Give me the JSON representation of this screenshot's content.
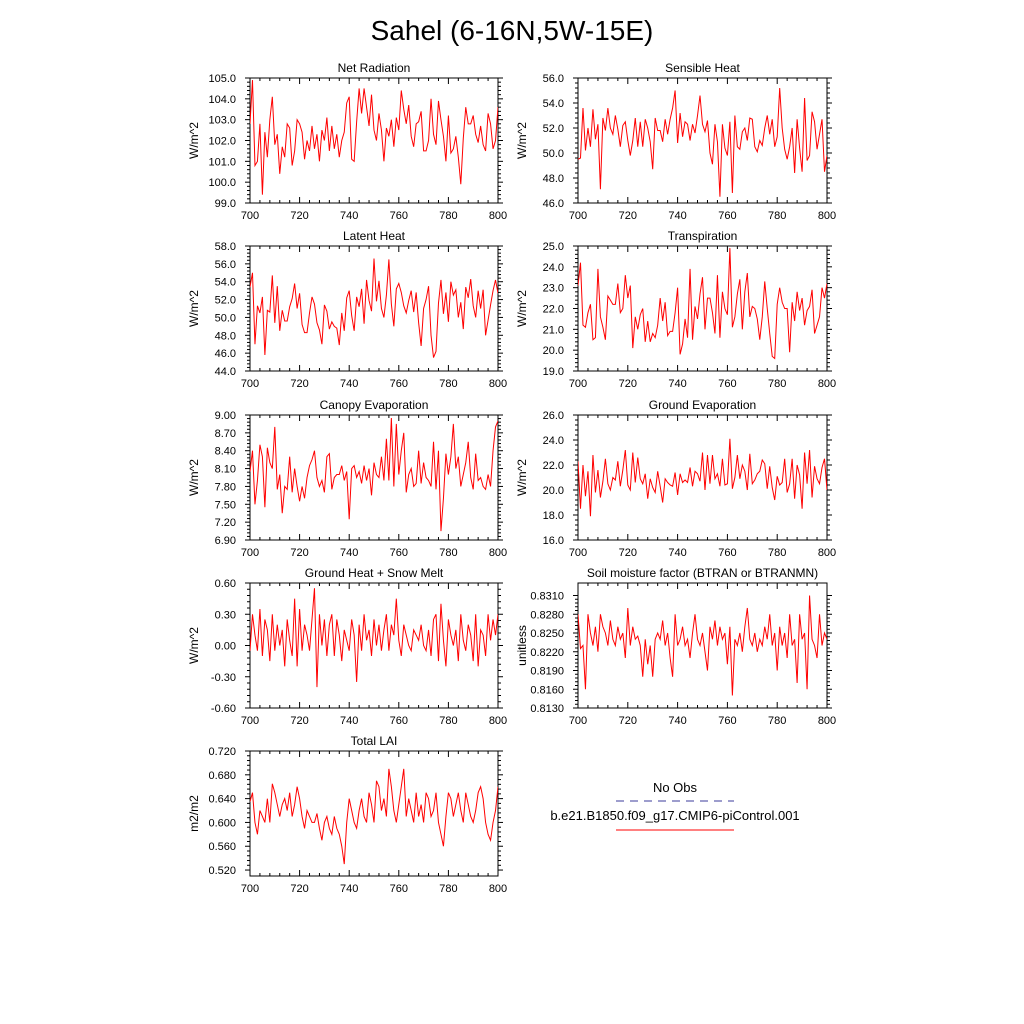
{
  "figure": {
    "title": "Sahel (6-16N,5W-15E)",
    "line_color": "#ff0000",
    "obs_color": "#3b3b9b"
  },
  "legend": {
    "obs_label": "No Obs",
    "case_label": "b.e21.B1850.f09_g17.CMIP6-piControl.001"
  },
  "chart_data": [
    {
      "type": "line",
      "title": "Net Radiation",
      "ylabel": "W/m^2",
      "xlim": [
        700,
        800
      ],
      "ylim": [
        99.0,
        105.0
      ],
      "xticks": [
        700,
        720,
        740,
        760,
        780,
        800
      ],
      "yticks": [
        99.0,
        100.0,
        101.0,
        102.0,
        103.0,
        104.0,
        105.0
      ],
      "ytick_labels": [
        "99.0",
        "100.0",
        "101.0",
        "102.0",
        "103.0",
        "104.0",
        "105.0"
      ],
      "x_start": 700,
      "values": [
        102.8,
        104.9,
        100.8,
        101.0,
        102.8,
        99.4,
        102.4,
        101.2,
        103.0,
        104.1,
        101.8,
        102.3,
        100.4,
        101.7,
        101.2,
        102.8,
        102.6,
        100.8,
        101.5,
        103.0,
        102.8,
        102.4,
        101.1,
        102.0,
        101.5,
        102.7,
        101.6,
        102.3,
        101.0,
        102.5,
        102.0,
        103.1,
        101.5,
        102.7,
        101.6,
        102.3,
        101.2,
        102.0,
        102.4,
        103.8,
        104.1,
        101.1,
        101.0,
        102.9,
        104.5,
        103.3,
        104.5,
        103.6,
        102.7,
        104.2,
        102.5,
        102.0,
        103.3,
        102.5,
        101.0,
        102.6,
        102.2,
        103.0,
        101.7,
        103.1,
        102.5,
        104.4,
        103.5,
        102.8,
        103.7,
        102.2,
        101.7,
        102.8,
        102.9,
        103.4,
        101.5,
        101.5,
        102.0,
        104.0,
        102.3,
        101.8,
        103.9,
        103.0,
        102.2,
        101.0,
        103.2,
        101.4,
        101.6,
        102.2,
        101.2,
        99.9,
        102.1,
        103.6,
        102.8,
        102.8,
        103.2,
        102.3,
        101.9,
        102.7,
        101.8,
        101.5,
        103.3,
        102.8,
        101.6,
        102.0,
        103.6
      ],
      "values_note": "approximate trace read from the plot"
    },
    {
      "type": "line",
      "title": "Sensible Heat",
      "ylabel": "W/m^2",
      "xlim": [
        700,
        800
      ],
      "ylim": [
        46.0,
        56.0
      ],
      "xticks": [
        700,
        720,
        740,
        760,
        780,
        800
      ],
      "yticks": [
        46.0,
        48.0,
        50.0,
        52.0,
        54.0,
        56.0
      ],
      "ytick_labels": [
        "46.0",
        "48.0",
        "50.0",
        "52.0",
        "54.0",
        "56.0"
      ],
      "x_start": 700,
      "values": [
        49.5,
        49.6,
        53.6,
        50.2,
        52.0,
        50.5,
        53.5,
        51.1,
        52.3,
        47.1,
        52.8,
        51.8,
        53.6,
        52.0,
        51.5,
        53.0,
        51.9,
        50.5,
        52.2,
        52.5,
        51.0,
        49.8,
        51.0,
        52.8,
        50.5,
        52.5,
        50.5,
        52.7,
        52.0,
        50.9,
        48.7,
        52.8,
        51.8,
        51.8,
        50.9,
        52.7,
        51.5,
        52.7,
        53.6,
        55.0,
        50.8,
        53.2,
        51.3,
        52.5,
        52.3,
        51.0,
        52.3,
        51.6,
        53.0,
        54.6,
        52.3,
        51.7,
        52.6,
        50.0,
        49.1,
        52.3,
        50.9,
        46.5,
        52.3,
        50.4,
        49.8,
        52.5,
        46.8,
        53.0,
        50.5,
        50.3,
        51.7,
        52.0,
        51.0,
        52.8,
        52.7,
        50.5,
        50.1,
        51.0,
        50.6,
        52.0,
        53.0,
        51.5,
        52.7,
        50.5,
        51.3,
        55.2,
        52.0,
        50.3,
        49.5,
        50.5,
        52.0,
        48.4,
        52.7,
        50.4,
        48.5,
        54.4,
        49.4,
        49.8,
        53.3,
        52.5,
        50.3,
        51.5,
        52.7,
        48.5,
        49.8
      ],
      "values_note": "approximate trace read from the plot"
    },
    {
      "type": "line",
      "title": "Latent Heat",
      "ylabel": "W/m^2",
      "xlim": [
        700,
        800
      ],
      "ylim": [
        44.0,
        58.0
      ],
      "xticks": [
        700,
        720,
        740,
        760,
        780,
        800
      ],
      "yticks": [
        44.0,
        46.0,
        48.0,
        50.0,
        52.0,
        54.0,
        56.0,
        58.0
      ],
      "ytick_labels": [
        "44.0",
        "46.0",
        "48.0",
        "50.0",
        "52.0",
        "54.0",
        "56.0",
        "58.0"
      ],
      "x_start": 700,
      "values": [
        53.4,
        55.0,
        47.0,
        51.3,
        50.5,
        52.3,
        45.8,
        50.8,
        50.6,
        54.7,
        49.4,
        53.5,
        48.5,
        50.8,
        49.6,
        49.6,
        51.2,
        52.1,
        53.8,
        51.0,
        52.7,
        49.2,
        48.3,
        48.3,
        50.5,
        52.3,
        51.5,
        49.4,
        48.6,
        47.0,
        51.4,
        50.7,
        48.7,
        49.5,
        49.0,
        48.8,
        46.9,
        50.5,
        48.5,
        52.2,
        53.0,
        50.2,
        48.5,
        52.3,
        51.2,
        53.2,
        49.3,
        54.2,
        51.9,
        50.7,
        56.6,
        51.8,
        54.1,
        51.0,
        50.0,
        52.5,
        56.5,
        51.5,
        49.0,
        53.2,
        53.8,
        52.8,
        51.3,
        50.5,
        51.9,
        53.0,
        50.6,
        52.8,
        49.4,
        46.8,
        51.0,
        52.0,
        53.5,
        48.0,
        45.5,
        46.2,
        51.6,
        54.2,
        50.4,
        52.8,
        49.5,
        54.0,
        52.5,
        53.1,
        50.0,
        51.7,
        48.7,
        53.4,
        52.2,
        54.3,
        51.3,
        50.0,
        53.0,
        51.0,
        53.1,
        48.0,
        49.7,
        51.4,
        53.0,
        54.2,
        52.7
      ],
      "values_note": "approximate trace read from the plot"
    },
    {
      "type": "line",
      "title": "Transpiration",
      "ylabel": "W/m^2",
      "xlim": [
        700,
        800
      ],
      "ylim": [
        19.0,
        25.0
      ],
      "xticks": [
        700,
        720,
        740,
        760,
        780,
        800
      ],
      "yticks": [
        19.0,
        20.0,
        21.0,
        22.0,
        23.0,
        24.0,
        25.0
      ],
      "ytick_labels": [
        "19.0",
        "20.0",
        "21.0",
        "22.0",
        "23.0",
        "24.0",
        "25.0"
      ],
      "x_start": 700,
      "values": [
        23.1,
        24.2,
        21.2,
        21.1,
        21.8,
        22.2,
        20.5,
        20.6,
        23.9,
        21.6,
        21.1,
        20.5,
        22.6,
        22.4,
        22.2,
        22.2,
        23.2,
        21.8,
        22.0,
        23.6,
        22.5,
        23.1,
        20.1,
        21.6,
        21.0,
        21.7,
        22.0,
        20.4,
        21.4,
        20.4,
        20.8,
        20.6,
        21.2,
        22.5,
        21.4,
        22.3,
        20.7,
        20.9,
        20.9,
        21.8,
        23.0,
        19.8,
        20.3,
        21.5,
        20.6,
        23.9,
        20.5,
        22.1,
        21.5,
        22.7,
        23.5,
        21.0,
        22.5,
        22.5,
        21.8,
        20.8,
        23.6,
        20.6,
        22.8,
        22.0,
        21.7,
        24.9,
        21.1,
        21.6,
        22.7,
        23.4,
        21.0,
        22.8,
        23.7,
        21.6,
        22.1,
        22.0,
        21.5,
        20.5,
        21.6,
        23.3,
        22.0,
        20.8,
        19.7,
        19.6,
        22.2,
        23.0,
        22.3,
        22.0,
        22.0,
        19.9,
        22.3,
        21.4,
        22.8,
        21.9,
        22.5,
        21.2,
        21.9,
        22.1,
        22.9,
        20.8,
        21.2,
        21.6,
        23.0,
        22.5,
        23.2
      ],
      "values_note": "approximate trace read from the plot"
    },
    {
      "type": "line",
      "title": "Canopy Evaporation",
      "ylabel": "W/m^2",
      "xlim": [
        700,
        800
      ],
      "ylim": [
        6.9,
        9.0
      ],
      "xticks": [
        700,
        720,
        740,
        760,
        780,
        800
      ],
      "yticks": [
        6.9,
        7.2,
        7.5,
        7.8,
        8.1,
        8.4,
        8.7,
        9.0
      ],
      "ytick_labels": [
        "6.90",
        "7.20",
        "7.50",
        "7.80",
        "8.10",
        "8.40",
        "8.70",
        "9.00"
      ],
      "x_start": 700,
      "values": [
        8.05,
        8.4,
        7.5,
        7.9,
        8.5,
        8.3,
        7.45,
        8.45,
        8.2,
        8.1,
        8.8,
        7.75,
        8.0,
        7.35,
        7.8,
        7.75,
        8.3,
        7.7,
        8.1,
        7.8,
        7.55,
        7.8,
        7.6,
        7.95,
        8.15,
        8.25,
        8.4,
        7.95,
        7.8,
        7.9,
        7.7,
        8.3,
        8.35,
        7.75,
        7.95,
        8.0,
        8.0,
        8.15,
        7.9,
        8.05,
        7.25,
        8.1,
        8.15,
        7.95,
        8.05,
        7.85,
        8.15,
        7.9,
        8.1,
        7.65,
        8.2,
        8.0,
        7.95,
        8.3,
        7.9,
        8.6,
        7.9,
        8.95,
        7.8,
        8.85,
        8.0,
        8.4,
        8.7,
        7.7,
        8.0,
        8.1,
        7.8,
        7.85,
        8.4,
        7.85,
        8.2,
        7.95,
        7.9,
        7.8,
        8.55,
        7.75,
        8.4,
        7.05,
        7.6,
        8.35,
        8.0,
        8.3,
        8.85,
        8.1,
        8.3,
        7.8,
        8.0,
        8.2,
        8.55,
        7.95,
        7.75,
        8.35,
        7.9,
        7.95,
        7.8,
        7.75,
        8.0,
        7.8,
        8.4,
        8.8,
        8.9
      ],
      "values_note": "approximate trace read from the plot"
    },
    {
      "type": "line",
      "title": "Ground Evaporation",
      "ylabel": "W/m^2",
      "xlim": [
        700,
        800
      ],
      "ylim": [
        16.0,
        26.0
      ],
      "xticks": [
        700,
        720,
        740,
        760,
        780,
        800
      ],
      "yticks": [
        16.0,
        18.0,
        20.0,
        22.0,
        24.0,
        26.0
      ],
      "ytick_labels": [
        "16.0",
        "18.0",
        "20.0",
        "22.0",
        "24.0",
        "26.0"
      ],
      "x_start": 700,
      "values": [
        22.3,
        18.5,
        22.0,
        19.5,
        21.5,
        17.9,
        22.8,
        19.8,
        21.6,
        19.4,
        20.7,
        22.5,
        20.5,
        20.0,
        21.0,
        20.8,
        22.3,
        20.3,
        21.6,
        23.2,
        20.4,
        20.0,
        23.0,
        20.6,
        22.6,
        20.9,
        20.5,
        21.3,
        19.3,
        20.9,
        20.2,
        19.8,
        21.5,
        20.3,
        19.0,
        20.9,
        20.6,
        20.4,
        20.3,
        21.4,
        19.6,
        21.3,
        20.6,
        20.8,
        20.6,
        21.8,
        20.3,
        21.5,
        21.3,
        20.7,
        23.0,
        20.0,
        22.8,
        20.5,
        22.8,
        20.9,
        21.3,
        20.3,
        22.5,
        20.4,
        20.5,
        24.1,
        20.1,
        21.0,
        22.8,
        20.9,
        22.0,
        21.5,
        20.0,
        22.9,
        20.5,
        20.8,
        21.3,
        21.5,
        22.4,
        22.1,
        20.1,
        21.9,
        20.2,
        19.2,
        21.1,
        20.4,
        20.6,
        22.5,
        19.8,
        20.5,
        22.5,
        19.3,
        22.0,
        21.2,
        18.5,
        23.0,
        20.5,
        23.2,
        19.4,
        21.9,
        20.9,
        20.5,
        21.8,
        22.5,
        20.0
      ],
      "values_note": "approximate trace read from the plot"
    },
    {
      "type": "line",
      "title": "Ground Heat + Snow Melt",
      "ylabel": "W/m^2",
      "xlim": [
        700,
        800
      ],
      "ylim": [
        -0.6,
        0.6
      ],
      "xticks": [
        700,
        720,
        740,
        760,
        780,
        800
      ],
      "yticks": [
        -0.6,
        -0.3,
        0.0,
        0.3,
        0.6
      ],
      "ytick_labels": [
        "-0.60",
        "-0.30",
        "0.00",
        "0.30",
        "0.60"
      ],
      "x_start": 700,
      "values": [
        -0.05,
        0.3,
        0.1,
        -0.05,
        0.35,
        -0.1,
        0.25,
        0.15,
        -0.15,
        0.3,
        -0.05,
        0.2,
        0.0,
        0.15,
        -0.2,
        0.25,
        0.05,
        -0.1,
        0.45,
        -0.2,
        0.35,
        -0.05,
        0.2,
        0.1,
        -0.05,
        0.25,
        0.55,
        -0.4,
        0.3,
        0.0,
        0.25,
        -0.1,
        0.2,
        0.3,
        -0.1,
        0.25,
        0.1,
        -0.15,
        0.15,
        0.05,
        -0.05,
        0.25,
        0.1,
        -0.35,
        0.2,
        -0.05,
        0.3,
        0.05,
        0.15,
        -0.1,
        0.25,
        0.0,
        0.2,
        -0.05,
        0.15,
        0.3,
        -0.05,
        0.2,
        0.1,
        0.45,
        0.05,
        -0.1,
        0.2,
        0.1,
        0.0,
        -0.05,
        0.15,
        0.1,
        0.05,
        0.2,
        0.0,
        -0.05,
        0.15,
        -0.1,
        0.25,
        0.3,
        -0.15,
        0.4,
        0.05,
        -0.2,
        0.25,
        0.1,
        0.0,
        0.15,
        -0.15,
        0.3,
        0.05,
        -0.05,
        0.2,
        0.1,
        -0.15,
        0.3,
        -0.2,
        0.15,
        0.1,
        -0.1,
        0.3,
        0.05,
        0.25,
        0.1,
        0.3
      ],
      "values_note": "approximate trace read from the plot"
    },
    {
      "type": "line",
      "title": "Soil moisture factor (BTRAN or BTRANMN)",
      "ylabel": "unitless",
      "xlim": [
        700,
        800
      ],
      "ylim": [
        0.813,
        0.833
      ],
      "xticks": [
        700,
        720,
        740,
        760,
        780,
        800
      ],
      "yticks": [
        0.813,
        0.816,
        0.819,
        0.822,
        0.825,
        0.828,
        0.831
      ],
      "ytick_labels": [
        "0.8130",
        "0.8160",
        "0.8190",
        "0.8220",
        "0.8250",
        "0.8280",
        "0.8310"
      ],
      "x_start": 700,
      "values": [
        0.828,
        0.8225,
        0.823,
        0.816,
        0.828,
        0.825,
        0.823,
        0.826,
        0.822,
        0.828,
        0.826,
        0.825,
        0.823,
        0.827,
        0.824,
        0.823,
        0.826,
        0.824,
        0.825,
        0.821,
        0.829,
        0.823,
        0.826,
        0.824,
        0.8245,
        0.823,
        0.818,
        0.824,
        0.82,
        0.823,
        0.818,
        0.824,
        0.825,
        0.824,
        0.827,
        0.823,
        0.825,
        0.821,
        0.818,
        0.828,
        0.823,
        0.824,
        0.826,
        0.823,
        0.824,
        0.821,
        0.825,
        0.828,
        0.824,
        0.823,
        0.825,
        0.822,
        0.819,
        0.826,
        0.824,
        0.827,
        0.823,
        0.826,
        0.824,
        0.825,
        0.82,
        0.826,
        0.815,
        0.824,
        0.823,
        0.825,
        0.822,
        0.826,
        0.829,
        0.824,
        0.823,
        0.825,
        0.822,
        0.824,
        0.823,
        0.826,
        0.824,
        0.828,
        0.823,
        0.825,
        0.819,
        0.826,
        0.823,
        0.825,
        0.821,
        0.828,
        0.823,
        0.824,
        0.817,
        0.828,
        0.824,
        0.825,
        0.816,
        0.831,
        0.824,
        0.823,
        0.821,
        0.828,
        0.823,
        0.825,
        0.824
      ],
      "values_note": "approximate trace read from the plot"
    },
    {
      "type": "line",
      "title": "Total LAI",
      "ylabel": "m2/m2",
      "xlim": [
        700,
        800
      ],
      "ylim": [
        0.51,
        0.72
      ],
      "xticks": [
        700,
        720,
        740,
        760,
        780,
        800
      ],
      "yticks": [
        0.52,
        0.56,
        0.6,
        0.64,
        0.68,
        0.72
      ],
      "ytick_labels": [
        "0.520",
        "0.560",
        "0.600",
        "0.640",
        "0.680",
        "0.720"
      ],
      "x_start": 700,
      "values": [
        0.635,
        0.65,
        0.6,
        0.58,
        0.62,
        0.61,
        0.6,
        0.64,
        0.6,
        0.665,
        0.65,
        0.63,
        0.61,
        0.63,
        0.64,
        0.62,
        0.65,
        0.61,
        0.63,
        0.66,
        0.64,
        0.61,
        0.59,
        0.62,
        0.61,
        0.6,
        0.6,
        0.615,
        0.59,
        0.57,
        0.6,
        0.61,
        0.59,
        0.58,
        0.61,
        0.59,
        0.58,
        0.56,
        0.53,
        0.6,
        0.64,
        0.62,
        0.6,
        0.59,
        0.62,
        0.64,
        0.61,
        0.6,
        0.65,
        0.63,
        0.6,
        0.67,
        0.66,
        0.62,
        0.64,
        0.61,
        0.69,
        0.66,
        0.62,
        0.6,
        0.63,
        0.66,
        0.69,
        0.61,
        0.64,
        0.62,
        0.6,
        0.65,
        0.61,
        0.63,
        0.6,
        0.65,
        0.64,
        0.61,
        0.62,
        0.65,
        0.6,
        0.58,
        0.56,
        0.61,
        0.65,
        0.64,
        0.61,
        0.63,
        0.65,
        0.62,
        0.6,
        0.65,
        0.63,
        0.61,
        0.6,
        0.62,
        0.65,
        0.66,
        0.64,
        0.6,
        0.58,
        0.57,
        0.6,
        0.62,
        0.66
      ],
      "values_note": "approximate trace read from the plot"
    }
  ]
}
